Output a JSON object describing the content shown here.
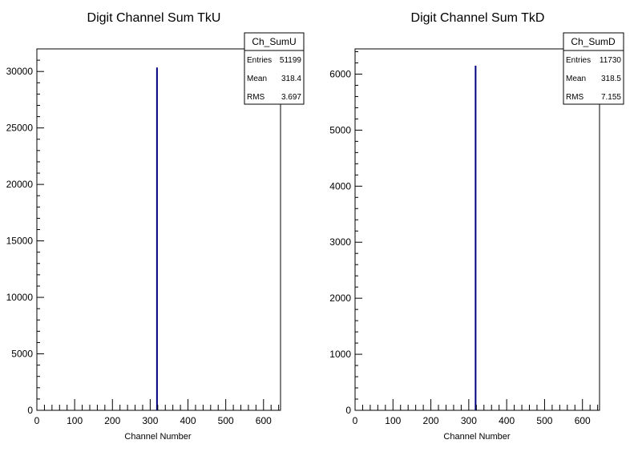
{
  "chart_data": [
    {
      "type": "bar",
      "title": "Digit Channel Sum TkU",
      "xlabel": "Channel Number",
      "ylabel": "",
      "xlim": [
        0,
        645
      ],
      "ylim": [
        0,
        32000
      ],
      "x_ticks": [
        0,
        100,
        200,
        300,
        400,
        500,
        600
      ],
      "y_ticks": [
        0,
        5000,
        10000,
        15000,
        20000,
        25000,
        30000
      ],
      "x": [
        318
      ],
      "values": [
        30350
      ],
      "bar_color": "#000080",
      "stats_box": {
        "name": "Ch_SumU",
        "rows": [
          {
            "label": "Entries",
            "value": "51199"
          },
          {
            "label": "Mean",
            "value": "318.4"
          },
          {
            "label": "RMS",
            "value": "3.697"
          }
        ]
      }
    },
    {
      "type": "bar",
      "title": "Digit Channel Sum TkD",
      "xlabel": "Channel Number",
      "ylabel": "",
      "xlim": [
        0,
        645
      ],
      "ylim": [
        0,
        6450
      ],
      "x_ticks": [
        0,
        100,
        200,
        300,
        400,
        500,
        600
      ],
      "y_ticks": [
        0,
        1000,
        2000,
        3000,
        4000,
        5000,
        6000
      ],
      "x": [
        318
      ],
      "values": [
        6150
      ],
      "bar_color": "#000080",
      "stats_box": {
        "name": "Ch_SumD",
        "rows": [
          {
            "label": "Entries",
            "value": "11730"
          },
          {
            "label": "Mean",
            "value": "318.5"
          },
          {
            "label": "RMS",
            "value": "7.155"
          }
        ]
      }
    }
  ]
}
